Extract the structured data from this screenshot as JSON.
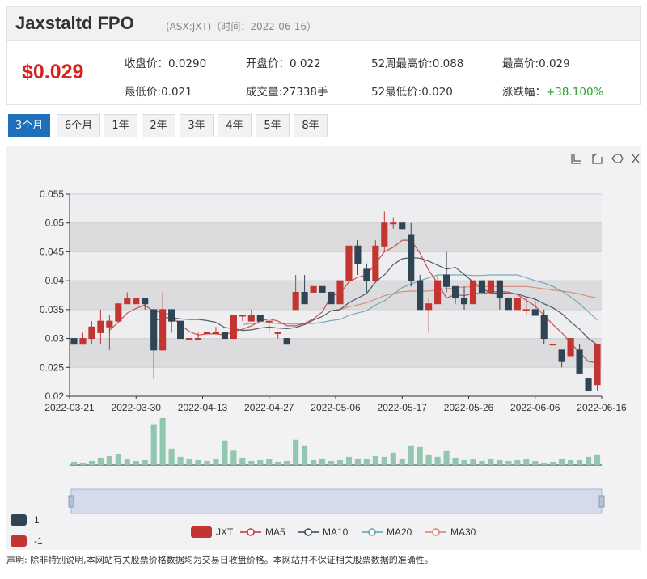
{
  "header": {
    "name": "Jaxstaltd FPO",
    "meta": "(ASX:JXT)（时间：2022-06-16）"
  },
  "quote": {
    "price": "$0.029",
    "close_label": "收盘价：",
    "close_value": "0.0290",
    "open_label": "开盘价：",
    "open_value": "0.022",
    "wk52_high_label": "52周最高价:",
    "wk52_high_value": "0.088",
    "high_label": "最高价:",
    "high_value": "0.029",
    "low_label": "最低价:",
    "low_value": "0.021",
    "volume_label": "成交量:",
    "volume_value": "27338手",
    "wk52_low_label": "52最低价:",
    "wk52_low_value": "0.020",
    "change_label": "涨跌幅：",
    "change_value": "+38.100%"
  },
  "tabs": [
    "3个月",
    "6个月",
    "1年",
    "2年",
    "3年",
    "4年",
    "5年",
    "8年"
  ],
  "colors": {
    "up": "#c23531",
    "down": "#2f4554",
    "ma5": "#c23531",
    "ma10": "#2f4554",
    "ma20": "#61a0a8",
    "ma30": "#d48265",
    "volume": "#91c7ae",
    "accent": "#1d6fba"
  },
  "toolbox_icons": [
    "zoom-icon",
    "zoom-reset-icon",
    "restore-icon",
    "save-icon"
  ],
  "chart_data": {
    "type": "candlestick",
    "ylim": [
      0.02,
      0.055
    ],
    "y_ticks": [
      "0.055",
      "0.05",
      "0.045",
      "0.04",
      "0.035",
      "0.03",
      "0.025",
      "0.02"
    ],
    "x_ticks": [
      "2022-03-21",
      "2022-03-30",
      "2022-04-13",
      "2022-04-27",
      "2022-05-06",
      "2022-05-17",
      "2022-05-26",
      "2022-06-06",
      "2022-06-16"
    ],
    "candles": [
      [
        0.03,
        0.029,
        0.031,
        0.028
      ],
      [
        0.029,
        0.03,
        0.031,
        0.029
      ],
      [
        0.03,
        0.032,
        0.033,
        0.029
      ],
      [
        0.031,
        0.033,
        0.035,
        0.029
      ],
      [
        0.032,
        0.033,
        0.034,
        0.028
      ],
      [
        0.033,
        0.036,
        0.036,
        0.033
      ],
      [
        0.036,
        0.037,
        0.038,
        0.036
      ],
      [
        0.036,
        0.037,
        0.037,
        0.036
      ],
      [
        0.037,
        0.036,
        0.037,
        0.035
      ],
      [
        0.035,
        0.028,
        0.035,
        0.023
      ],
      [
        0.028,
        0.035,
        0.038,
        0.028
      ],
      [
        0.035,
        0.033,
        0.035,
        0.031
      ],
      [
        0.033,
        0.03,
        0.033,
        0.03
      ],
      [
        0.03,
        0.03,
        0.03,
        0.03
      ],
      [
        0.03,
        0.03,
        0.031,
        0.03
      ],
      [
        0.031,
        0.031,
        0.031,
        0.031
      ],
      [
        0.031,
        0.031,
        0.032,
        0.031
      ],
      [
        0.031,
        0.03,
        0.031,
        0.03
      ],
      [
        0.03,
        0.034,
        0.034,
        0.03
      ],
      [
        0.034,
        0.034,
        0.034,
        0.033
      ],
      [
        0.033,
        0.034,
        0.035,
        0.033
      ],
      [
        0.034,
        0.033,
        0.034,
        0.033
      ],
      [
        0.033,
        0.033,
        0.033,
        0.031
      ],
      [
        0.031,
        0.031,
        0.031,
        0.03
      ],
      [
        0.03,
        0.029,
        0.03,
        0.029
      ],
      [
        0.035,
        0.038,
        0.041,
        0.035
      ],
      [
        0.038,
        0.036,
        0.041,
        0.036
      ],
      [
        0.038,
        0.039,
        0.039,
        0.038
      ],
      [
        0.039,
        0.038,
        0.039,
        0.038
      ],
      [
        0.038,
        0.036,
        0.038,
        0.036
      ],
      [
        0.036,
        0.04,
        0.04,
        0.036
      ],
      [
        0.04,
        0.046,
        0.047,
        0.038
      ],
      [
        0.046,
        0.043,
        0.047,
        0.041
      ],
      [
        0.042,
        0.04,
        0.043,
        0.038
      ],
      [
        0.04,
        0.046,
        0.047,
        0.04
      ],
      [
        0.046,
        0.05,
        0.052,
        0.045
      ],
      [
        0.05,
        0.05,
        0.051,
        0.049
      ],
      [
        0.05,
        0.049,
        0.05,
        0.049
      ],
      [
        0.048,
        0.04,
        0.05,
        0.039
      ],
      [
        0.04,
        0.035,
        0.041,
        0.035
      ],
      [
        0.035,
        0.036,
        0.037,
        0.031
      ],
      [
        0.036,
        0.04,
        0.041,
        0.036
      ],
      [
        0.041,
        0.039,
        0.045,
        0.038
      ],
      [
        0.039,
        0.037,
        0.039,
        0.036
      ],
      [
        0.037,
        0.036,
        0.039,
        0.035
      ],
      [
        0.036,
        0.04,
        0.04,
        0.036
      ],
      [
        0.04,
        0.038,
        0.04,
        0.038
      ],
      [
        0.038,
        0.04,
        0.04,
        0.038
      ],
      [
        0.04,
        0.037,
        0.04,
        0.035
      ],
      [
        0.037,
        0.035,
        0.037,
        0.035
      ],
      [
        0.035,
        0.037,
        0.037,
        0.035
      ],
      [
        0.035,
        0.035,
        0.037,
        0.034
      ],
      [
        0.035,
        0.034,
        0.037,
        0.034
      ],
      [
        0.034,
        0.03,
        0.035,
        0.029
      ],
      [
        0.029,
        0.029,
        0.029,
        0.029
      ],
      [
        0.028,
        0.026,
        0.028,
        0.025
      ],
      [
        0.027,
        0.03,
        0.03,
        0.027
      ],
      [
        0.028,
        0.024,
        0.029,
        0.024
      ],
      [
        0.023,
        0.021,
        0.023,
        0.021
      ],
      [
        0.022,
        0.029,
        0.029,
        0.021
      ]
    ],
    "ma5": [
      null,
      null,
      null,
      null,
      0.0314,
      0.0328,
      0.0344,
      0.0352,
      0.0358,
      0.0346,
      0.0346,
      0.0338,
      0.0324,
      0.0312,
      0.0306,
      0.0308,
      0.0308,
      0.0306,
      0.0312,
      0.0316,
      0.0322,
      0.033,
      0.0334,
      0.033,
      0.0322,
      0.0322,
      0.0326,
      0.0334,
      0.0346,
      0.0374,
      0.0378,
      0.0398,
      0.0406,
      0.041,
      0.043,
      0.045,
      0.0458,
      0.047,
      0.047,
      0.0448,
      0.0418,
      0.0396,
      0.037,
      0.0376,
      0.0374,
      0.0378,
      0.0378,
      0.038,
      0.0382,
      0.038,
      0.0376,
      0.0366,
      0.0356,
      0.034,
      0.0324,
      0.031,
      0.0292,
      0.0276,
      0.026,
      0.0258
    ],
    "ma10": [
      null,
      null,
      null,
      null,
      null,
      null,
      null,
      null,
      null,
      0.033,
      0.0336,
      0.0336,
      0.0334,
      0.0333,
      0.0333,
      0.0331,
      0.0328,
      0.0319,
      0.0317,
      0.0314,
      0.0315,
      0.0318,
      0.032,
      0.0318,
      0.0317,
      0.0319,
      0.0324,
      0.0332,
      0.0338,
      0.0348,
      0.035,
      0.0362,
      0.037,
      0.0378,
      0.0398,
      0.041,
      0.0428,
      0.0438,
      0.044,
      0.0439,
      0.0434,
      0.0427,
      0.042,
      0.0423,
      0.0411,
      0.0398,
      0.0387,
      0.0378,
      0.0379,
      0.0378,
      0.0377,
      0.0372,
      0.0368,
      0.036,
      0.0353,
      0.0343,
      0.0329,
      0.0316,
      0.03,
      0.0289
    ],
    "ma20": [
      null,
      null,
      null,
      null,
      null,
      null,
      null,
      null,
      null,
      null,
      null,
      null,
      null,
      null,
      null,
      null,
      null,
      null,
      null,
      0.0324,
      0.0326,
      0.0327,
      0.0327,
      0.0326,
      0.0325,
      0.0325,
      0.0326,
      0.0326,
      0.0328,
      0.0331,
      0.0333,
      0.034,
      0.0344,
      0.0348,
      0.0358,
      0.0365,
      0.0377,
      0.0388,
      0.0394,
      0.04,
      0.0405,
      0.041,
      0.041,
      0.041,
      0.041,
      0.0409,
      0.0409,
      0.041,
      0.041,
      0.041,
      0.041,
      0.0405,
      0.04,
      0.0396,
      0.039,
      0.0382,
      0.0372,
      0.036,
      0.0346,
      0.0332
    ],
    "ma30": [
      null,
      null,
      null,
      null,
      null,
      null,
      null,
      null,
      null,
      null,
      null,
      null,
      null,
      null,
      null,
      null,
      null,
      null,
      null,
      null,
      null,
      null,
      null,
      null,
      null,
      null,
      null,
      null,
      null,
      0.0348,
      0.035,
      0.0355,
      0.0358,
      0.0362,
      0.0368,
      0.0374,
      0.0378,
      0.0381,
      0.0382,
      0.0382,
      0.0382,
      0.0384,
      0.0386,
      0.0388,
      0.0389,
      0.039,
      0.039,
      0.039,
      0.039,
      0.039,
      0.039,
      0.039,
      0.0388,
      0.0386,
      0.0384,
      0.0382,
      0.038,
      0.0377,
      0.0373,
      0.037
    ],
    "volume": [
      0.08,
      0.06,
      0.1,
      0.18,
      0.22,
      0.26,
      0.16,
      0.1,
      0.12,
      1.0,
      1.15,
      0.4,
      0.2,
      0.14,
      0.12,
      0.1,
      0.14,
      0.6,
      0.35,
      0.18,
      0.1,
      0.12,
      0.14,
      0.08,
      0.1,
      0.62,
      0.48,
      0.12,
      0.16,
      0.1,
      0.12,
      0.2,
      0.16,
      0.14,
      0.22,
      0.2,
      0.3,
      0.16,
      0.48,
      0.44,
      0.24,
      0.2,
      0.34,
      0.18,
      0.12,
      0.14,
      0.1,
      0.16,
      0.12,
      0.1,
      0.12,
      0.14,
      0.1,
      0.06,
      0.08,
      0.14,
      0.12,
      0.12,
      0.2,
      0.24
    ],
    "legend": [
      "JXT",
      "MA5",
      "MA10",
      "MA20",
      "MA30"
    ],
    "visual_map": [
      {
        "label": "1",
        "color": "#2f4554"
      },
      {
        "label": "-1",
        "color": "#c23531"
      }
    ]
  },
  "footnote": "声明: 除非特别说明,本网站有关股票价格数据均为交易日收盘价格。本网站并不保证相关股票数据的准确性。"
}
